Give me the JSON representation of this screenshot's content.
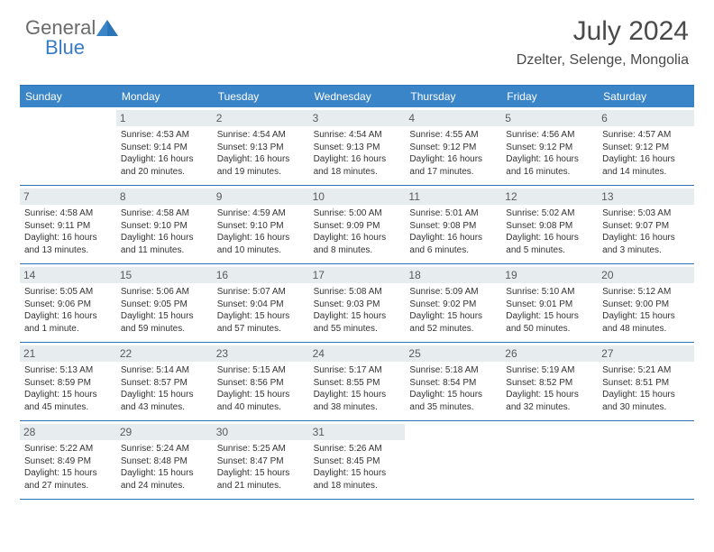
{
  "logo": {
    "general": "General",
    "blue": "Blue"
  },
  "title": "July 2024",
  "location": "Dzelter, Selenge, Mongolia",
  "colors": {
    "header_bg": "#3a84c8",
    "header_text": "#ffffff",
    "border": "#2a74b8",
    "daynum_bg": "#e7ecef",
    "daynum_text": "#5a5a5a",
    "body_text": "#333333",
    "logo_gray": "#6b6b6b",
    "logo_blue": "#3a7cc4"
  },
  "day_names": [
    "Sunday",
    "Monday",
    "Tuesday",
    "Wednesday",
    "Thursday",
    "Friday",
    "Saturday"
  ],
  "weeks": [
    [
      {
        "n": "",
        "sr": "",
        "ss": "",
        "dl": ""
      },
      {
        "n": "1",
        "sr": "Sunrise: 4:53 AM",
        "ss": "Sunset: 9:14 PM",
        "dl": "Daylight: 16 hours and 20 minutes."
      },
      {
        "n": "2",
        "sr": "Sunrise: 4:54 AM",
        "ss": "Sunset: 9:13 PM",
        "dl": "Daylight: 16 hours and 19 minutes."
      },
      {
        "n": "3",
        "sr": "Sunrise: 4:54 AM",
        "ss": "Sunset: 9:13 PM",
        "dl": "Daylight: 16 hours and 18 minutes."
      },
      {
        "n": "4",
        "sr": "Sunrise: 4:55 AM",
        "ss": "Sunset: 9:12 PM",
        "dl": "Daylight: 16 hours and 17 minutes."
      },
      {
        "n": "5",
        "sr": "Sunrise: 4:56 AM",
        "ss": "Sunset: 9:12 PM",
        "dl": "Daylight: 16 hours and 16 minutes."
      },
      {
        "n": "6",
        "sr": "Sunrise: 4:57 AM",
        "ss": "Sunset: 9:12 PM",
        "dl": "Daylight: 16 hours and 14 minutes."
      }
    ],
    [
      {
        "n": "7",
        "sr": "Sunrise: 4:58 AM",
        "ss": "Sunset: 9:11 PM",
        "dl": "Daylight: 16 hours and 13 minutes."
      },
      {
        "n": "8",
        "sr": "Sunrise: 4:58 AM",
        "ss": "Sunset: 9:10 PM",
        "dl": "Daylight: 16 hours and 11 minutes."
      },
      {
        "n": "9",
        "sr": "Sunrise: 4:59 AM",
        "ss": "Sunset: 9:10 PM",
        "dl": "Daylight: 16 hours and 10 minutes."
      },
      {
        "n": "10",
        "sr": "Sunrise: 5:00 AM",
        "ss": "Sunset: 9:09 PM",
        "dl": "Daylight: 16 hours and 8 minutes."
      },
      {
        "n": "11",
        "sr": "Sunrise: 5:01 AM",
        "ss": "Sunset: 9:08 PM",
        "dl": "Daylight: 16 hours and 6 minutes."
      },
      {
        "n": "12",
        "sr": "Sunrise: 5:02 AM",
        "ss": "Sunset: 9:08 PM",
        "dl": "Daylight: 16 hours and 5 minutes."
      },
      {
        "n": "13",
        "sr": "Sunrise: 5:03 AM",
        "ss": "Sunset: 9:07 PM",
        "dl": "Daylight: 16 hours and 3 minutes."
      }
    ],
    [
      {
        "n": "14",
        "sr": "Sunrise: 5:05 AM",
        "ss": "Sunset: 9:06 PM",
        "dl": "Daylight: 16 hours and 1 minute."
      },
      {
        "n": "15",
        "sr": "Sunrise: 5:06 AM",
        "ss": "Sunset: 9:05 PM",
        "dl": "Daylight: 15 hours and 59 minutes."
      },
      {
        "n": "16",
        "sr": "Sunrise: 5:07 AM",
        "ss": "Sunset: 9:04 PM",
        "dl": "Daylight: 15 hours and 57 minutes."
      },
      {
        "n": "17",
        "sr": "Sunrise: 5:08 AM",
        "ss": "Sunset: 9:03 PM",
        "dl": "Daylight: 15 hours and 55 minutes."
      },
      {
        "n": "18",
        "sr": "Sunrise: 5:09 AM",
        "ss": "Sunset: 9:02 PM",
        "dl": "Daylight: 15 hours and 52 minutes."
      },
      {
        "n": "19",
        "sr": "Sunrise: 5:10 AM",
        "ss": "Sunset: 9:01 PM",
        "dl": "Daylight: 15 hours and 50 minutes."
      },
      {
        "n": "20",
        "sr": "Sunrise: 5:12 AM",
        "ss": "Sunset: 9:00 PM",
        "dl": "Daylight: 15 hours and 48 minutes."
      }
    ],
    [
      {
        "n": "21",
        "sr": "Sunrise: 5:13 AM",
        "ss": "Sunset: 8:59 PM",
        "dl": "Daylight: 15 hours and 45 minutes."
      },
      {
        "n": "22",
        "sr": "Sunrise: 5:14 AM",
        "ss": "Sunset: 8:57 PM",
        "dl": "Daylight: 15 hours and 43 minutes."
      },
      {
        "n": "23",
        "sr": "Sunrise: 5:15 AM",
        "ss": "Sunset: 8:56 PM",
        "dl": "Daylight: 15 hours and 40 minutes."
      },
      {
        "n": "24",
        "sr": "Sunrise: 5:17 AM",
        "ss": "Sunset: 8:55 PM",
        "dl": "Daylight: 15 hours and 38 minutes."
      },
      {
        "n": "25",
        "sr": "Sunrise: 5:18 AM",
        "ss": "Sunset: 8:54 PM",
        "dl": "Daylight: 15 hours and 35 minutes."
      },
      {
        "n": "26",
        "sr": "Sunrise: 5:19 AM",
        "ss": "Sunset: 8:52 PM",
        "dl": "Daylight: 15 hours and 32 minutes."
      },
      {
        "n": "27",
        "sr": "Sunrise: 5:21 AM",
        "ss": "Sunset: 8:51 PM",
        "dl": "Daylight: 15 hours and 30 minutes."
      }
    ],
    [
      {
        "n": "28",
        "sr": "Sunrise: 5:22 AM",
        "ss": "Sunset: 8:49 PM",
        "dl": "Daylight: 15 hours and 27 minutes."
      },
      {
        "n": "29",
        "sr": "Sunrise: 5:24 AM",
        "ss": "Sunset: 8:48 PM",
        "dl": "Daylight: 15 hours and 24 minutes."
      },
      {
        "n": "30",
        "sr": "Sunrise: 5:25 AM",
        "ss": "Sunset: 8:47 PM",
        "dl": "Daylight: 15 hours and 21 minutes."
      },
      {
        "n": "31",
        "sr": "Sunrise: 5:26 AM",
        "ss": "Sunset: 8:45 PM",
        "dl": "Daylight: 15 hours and 18 minutes."
      },
      {
        "n": "",
        "sr": "",
        "ss": "",
        "dl": ""
      },
      {
        "n": "",
        "sr": "",
        "ss": "",
        "dl": ""
      },
      {
        "n": "",
        "sr": "",
        "ss": "",
        "dl": ""
      }
    ]
  ]
}
